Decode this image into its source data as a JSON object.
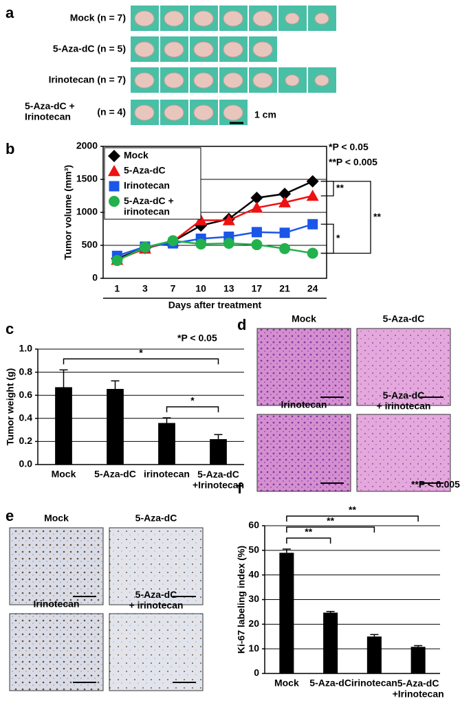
{
  "panel_labels": [
    "a",
    "b",
    "c",
    "d",
    "e",
    "f"
  ],
  "panel_a": {
    "rows": [
      {
        "label": "Mock (n = 7)"
      },
      {
        "label": "5-Aza-dC (n = 5)"
      },
      {
        "label": "Irinotecan (n = 7)"
      },
      {
        "label": "5-Aza-dC +\nIrinotecan",
        "n": "(n = 4)"
      }
    ],
    "scale_bar": "1 cm"
  },
  "panel_d": {
    "images": [
      "Mock",
      "5-Aza-dC",
      "Irinotecan",
      "5-Aza-dC\n+ irinotecan"
    ]
  },
  "panel_e": {
    "images": [
      "Mock",
      "5-Aza-dC",
      "Irinotecan",
      "5-Aza-dC\n+ irinotecan"
    ]
  },
  "chart_data": [
    {
      "type": "line",
      "categories": [
        1,
        3,
        7,
        10,
        13,
        17,
        21,
        24
      ],
      "xlabel": "Days after treatment",
      "ylabel": "Tumor volume (mm³)",
      "ylim": [
        0,
        2000
      ],
      "yticks": [
        0,
        500,
        1000,
        1500,
        2000
      ],
      "grid": true,
      "series": [
        {
          "name": "Mock",
          "color": "#000000",
          "marker": "diamond",
          "values": [
            300,
            460,
            560,
            800,
            900,
            1220,
            1280,
            1470
          ]
        },
        {
          "name": "5-Aza-dC",
          "color": "#ee1111",
          "marker": "triangle",
          "values": [
            280,
            450,
            560,
            880,
            880,
            1070,
            1150,
            1250
          ]
        },
        {
          "name": "Irinotecan",
          "color": "#1a56e8",
          "marker": "square",
          "values": [
            340,
            480,
            530,
            600,
            630,
            700,
            690,
            820
          ]
        },
        {
          "name": "5-Aza-dC +\nirinotecan",
          "color": "#22b14c",
          "marker": "circle",
          "values": [
            270,
            470,
            570,
            520,
            530,
            510,
            450,
            380
          ]
        }
      ],
      "annotations": [
        "*P < 0.05",
        "**P < 0.005"
      ],
      "brackets": [
        {
          "between": [
            0,
            1
          ],
          "label": "**"
        },
        {
          "between": [
            2,
            3
          ],
          "label": "*"
        },
        {
          "between": [
            0,
            3
          ],
          "label": "**"
        }
      ]
    },
    {
      "type": "bar",
      "categories": [
        "Mock",
        "5-Aza-dC",
        "irinotecan",
        "5-Aza-dC\n+Irinotecan"
      ],
      "values": [
        0.67,
        0.655,
        0.36,
        0.22
      ],
      "errors": [
        0.15,
        0.07,
        0.045,
        0.04
      ],
      "color": "#000000",
      "ylabel": "Tumor weight (g)",
      "ylim": [
        0,
        1
      ],
      "yticks": [
        {
          "value": 0,
          "label": "0.0"
        },
        0.2,
        0.4,
        0.6,
        0.8,
        {
          "value": 1,
          "label": "1.0"
        }
      ],
      "grid": true,
      "annotations": [
        "*P < 0.05"
      ],
      "brackets": [
        {
          "between": [
            2,
            3
          ],
          "label": "*"
        },
        {
          "between": [
            0,
            3
          ],
          "label": "*"
        }
      ]
    },
    {
      "type": "bar",
      "categories": [
        "Mock",
        "5-Aza-dC",
        "irinotecan",
        "5-Aza-dC\n+Irinotecan"
      ],
      "values": [
        49,
        24.7,
        15,
        10.8
      ],
      "errors": [
        1.5,
        0.5,
        0.8,
        0.5
      ],
      "color": "#000000",
      "ylabel": "Ki-67 labeling index (%)",
      "ylim": [
        0,
        60
      ],
      "yticks": [
        0,
        10,
        20,
        30,
        40,
        50,
        60
      ],
      "grid": true,
      "annotations": [
        "**P < 0.005"
      ],
      "brackets": [
        {
          "between": [
            0,
            1
          ],
          "label": "**"
        },
        {
          "between": [
            0,
            2
          ],
          "label": "**"
        },
        {
          "between": [
            0,
            3
          ],
          "label": "**"
        }
      ]
    }
  ]
}
